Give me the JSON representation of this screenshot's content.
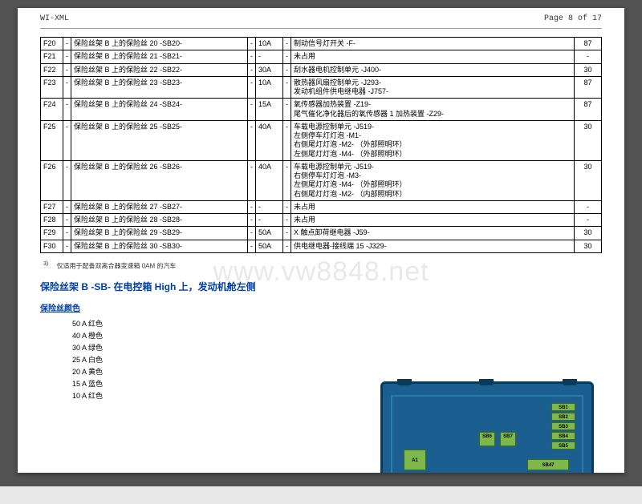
{
  "header": {
    "left": "WI-XML",
    "right": "Page 8 of 17"
  },
  "watermark": "www.vw8848.net",
  "table": {
    "rows": [
      {
        "id": "F20",
        "desc": "保险丝架 B 上的保险丝 20 -SB20-",
        "amp": "10A",
        "dash": "-",
        "usage": "制动信号灯开关 -F-",
        "term": "87"
      },
      {
        "id": "F21",
        "desc": "保险丝架 B 上的保险丝 21 -SB21-",
        "amp": "-",
        "dash": "-",
        "usage": "未占用",
        "term": "-"
      },
      {
        "id": "F22",
        "desc": "保险丝架 B 上的保险丝 22 -SB22-",
        "amp": "30A",
        "dash": "-",
        "usage": "刮水器电机控制单元 -J400-",
        "term": "30"
      },
      {
        "id": "F23",
        "desc": "保险丝架 B 上的保险丝 23 -SB23-",
        "amp": "10A",
        "dash": "-",
        "usage": "散热器风扇控制单元 -J293-\n发动机组件供电继电器 -J757-",
        "term": "87"
      },
      {
        "id": "F24",
        "desc": "保险丝架 B 上的保险丝 24 -SB24-",
        "amp": "15A",
        "dash": "-",
        "usage": "氧传感器加热装置 -Z19-\n尾气催化净化器后的氧传感器 1 加热装置 -Z29-",
        "term": "87"
      },
      {
        "id": "F25",
        "desc": "保险丝架 B 上的保险丝 25 -SB25-",
        "amp": "40A",
        "dash": "-",
        "usage": "车载电源控制单元 -J519-\n左侧停车灯灯泡 -M1-\n右侧尾灯灯泡 -M2-  （外部照明环）\n左侧尾灯灯泡 -M4-  （外部照明环）",
        "term": "30"
      },
      {
        "id": "F26",
        "desc": "保险丝架 B 上的保险丝 26 -SB26-",
        "amp": "40A",
        "dash": "-",
        "usage": "车载电源控制单元 -J519-\n右侧停车灯灯泡 -M3-\n左侧尾灯灯泡 -M4-  （外部照明环）\n右侧尾灯灯泡 -M2-  （内部照明环）",
        "term": "30"
      },
      {
        "id": "F27",
        "desc": "保险丝架 B 上的保险丝 27 -SB27-",
        "amp": "-",
        "dash": "-",
        "usage": "未占用",
        "term": "-"
      },
      {
        "id": "F28",
        "desc": "保险丝架 B 上的保险丝 28 -SB28-",
        "amp": "-",
        "dash": "-",
        "usage": "未占用",
        "term": "-"
      },
      {
        "id": "F29",
        "desc": "保险丝架 B 上的保险丝 29 -SB29-",
        "amp": "50A",
        "dash": "-",
        "usage": "X 触点卸荷继电器 -J59-",
        "term": "30"
      },
      {
        "id": "F30",
        "desc": "保险丝架 B 上的保险丝 30 -SB30-",
        "amp": "50A",
        "dash": "-",
        "usage": "供电继电器-接线端 15 -J329-",
        "term": "30"
      }
    ]
  },
  "footnote": {
    "marker": "3)",
    "text": "仅适用于配备双离合器变速箱 0AM 的汽车"
  },
  "heading1": "保险丝架 B -SB- 在电控箱 High 上，发动机舱左侧",
  "heading2": "保险丝颜色",
  "color_legend": [
    "50 A 红色",
    "40 A 橙色",
    "30 A 绿色",
    "25 A 白色",
    "20 A 黄色",
    "15 A 蓝色",
    "10 A 红色"
  ],
  "diagram": {
    "bg": "#1a5f8f",
    "border": "#0a3a5a",
    "slot_fill": "#7fb84a",
    "slot_border": "#3a6a1a",
    "right_slots": [
      "SB1",
      "SB2",
      "SB3",
      "SB4",
      "SB5"
    ],
    "mid_slots": [
      "SB6",
      "SB7"
    ],
    "left_block": "A1",
    "wide": "SB47"
  }
}
